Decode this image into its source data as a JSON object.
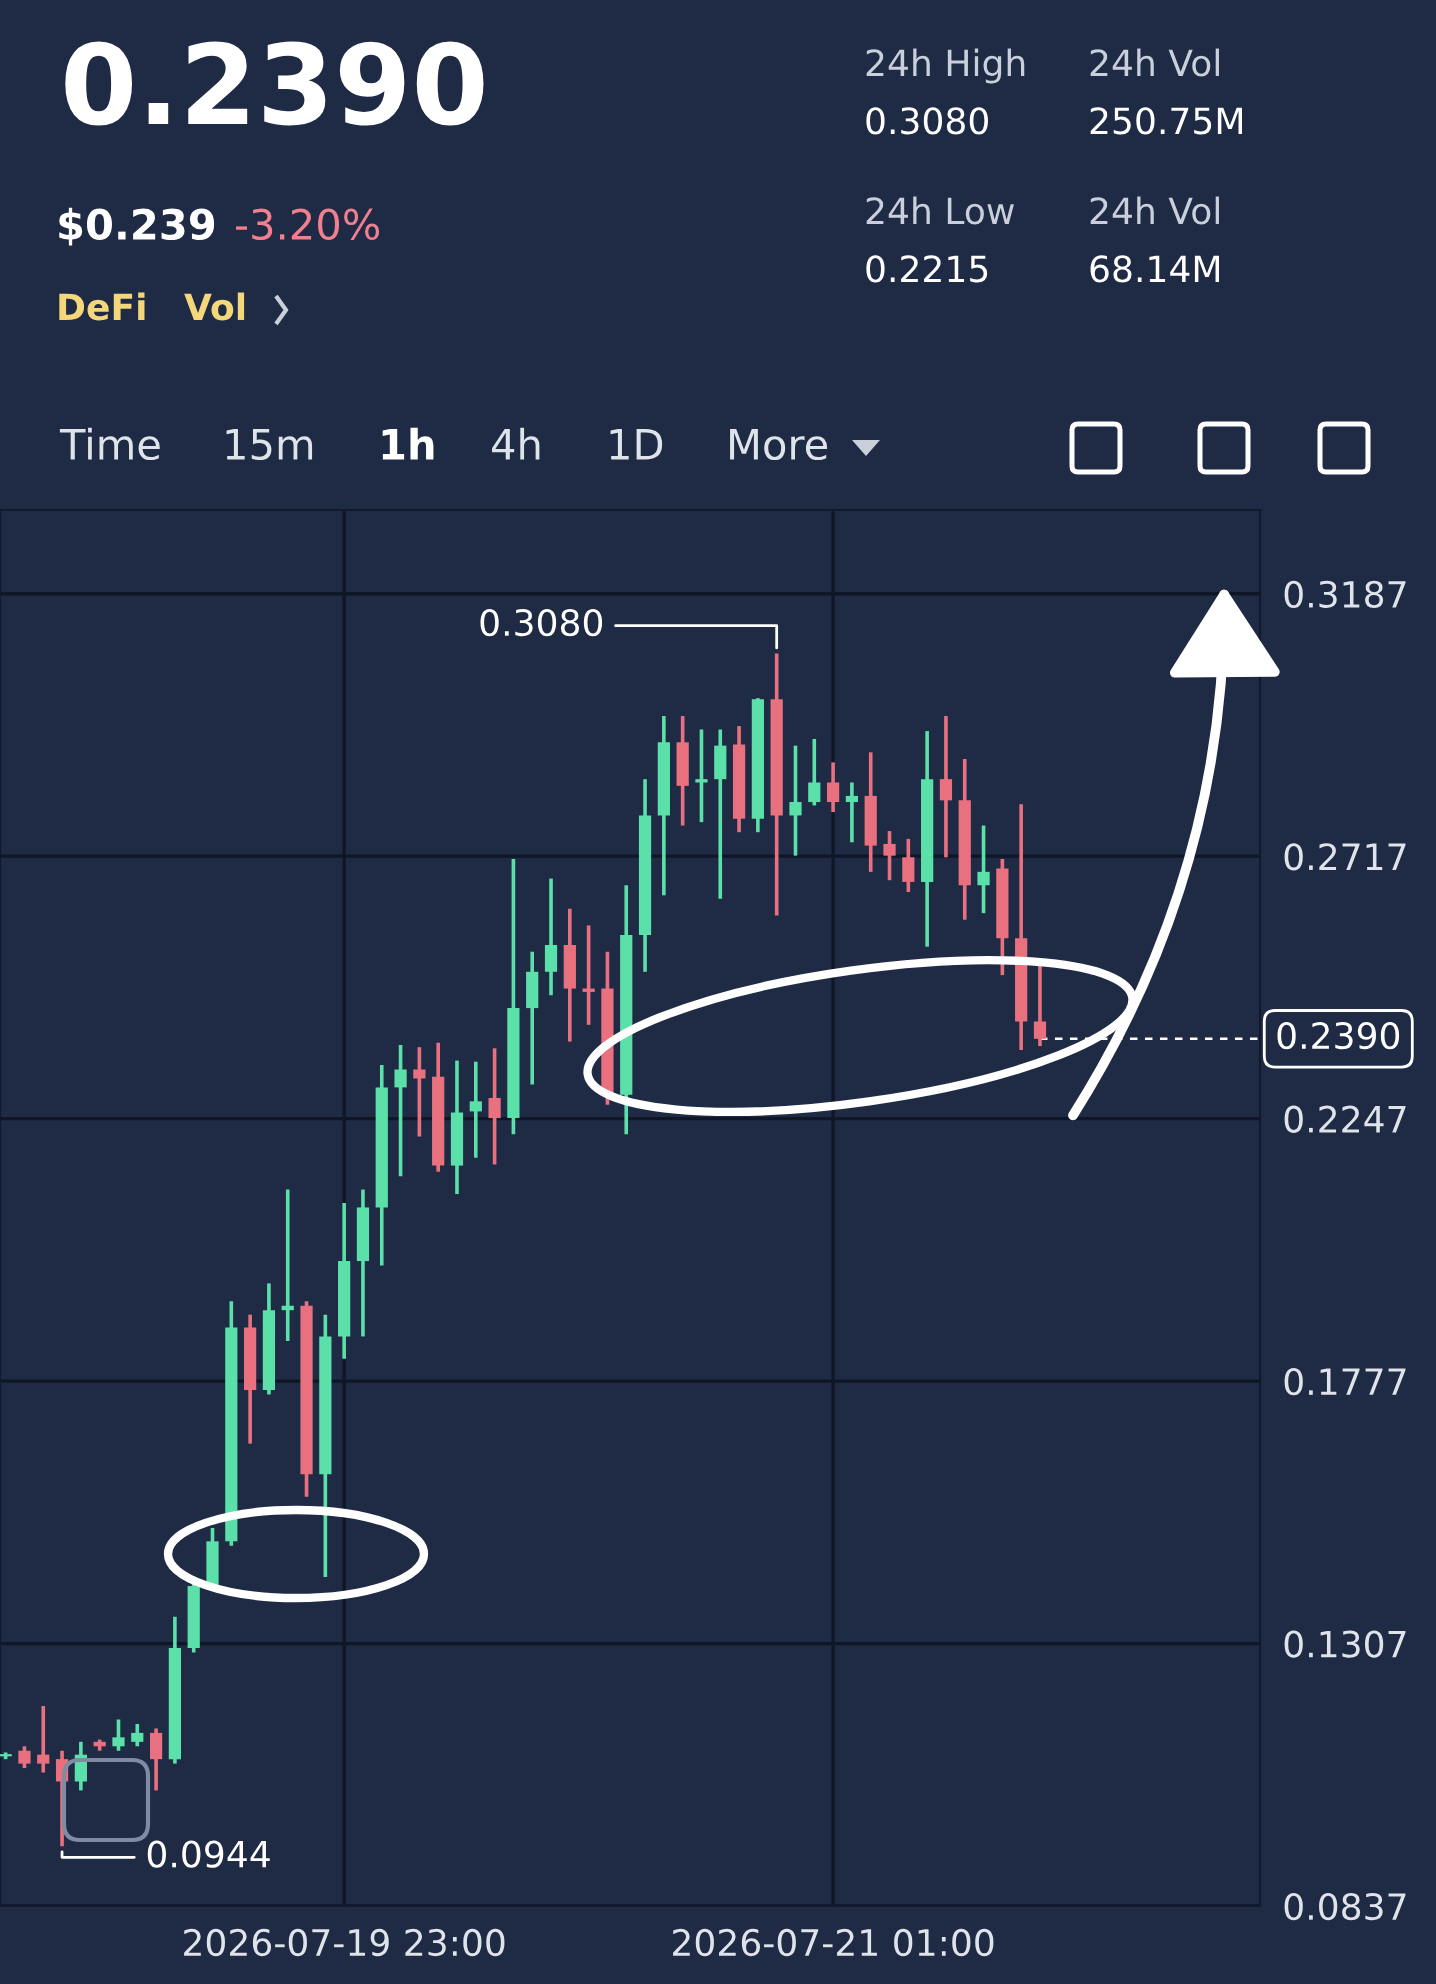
{
  "chart_data": {
    "type": "candlestick",
    "title": "0.2390",
    "x": [
      "2026-07-19T05:00",
      "2026-07-19T06:00",
      "2026-07-19T07:00",
      "2026-07-19T08:00",
      "2026-07-19T09:00",
      "2026-07-19T10:00",
      "2026-07-19T11:00",
      "2026-07-19T12:00",
      "2026-07-19T13:00",
      "2026-07-19T14:00",
      "2026-07-19T15:00",
      "2026-07-19T16:00",
      "2026-07-19T17:00",
      "2026-07-19T18:00",
      "2026-07-19T19:00",
      "2026-07-19T20:00",
      "2026-07-19T21:00",
      "2026-07-19T22:00",
      "2026-07-19T23:00",
      "2026-07-20T00:00",
      "2026-07-20T01:00",
      "2026-07-20T02:00",
      "2026-07-20T03:00",
      "2026-07-20T04:00",
      "2026-07-20T05:00",
      "2026-07-20T06:00",
      "2026-07-20T07:00",
      "2026-07-20T08:00",
      "2026-07-20T09:00",
      "2026-07-20T10:00",
      "2026-07-20T11:00",
      "2026-07-20T12:00",
      "2026-07-20T13:00",
      "2026-07-20T14:00",
      "2026-07-20T15:00",
      "2026-07-20T16:00",
      "2026-07-20T17:00",
      "2026-07-20T18:00",
      "2026-07-20T19:00",
      "2026-07-20T20:00",
      "2026-07-20T21:00",
      "2026-07-20T22:00",
      "2026-07-20T23:00",
      "2026-07-21T00:00",
      "2026-07-21T01:00",
      "2026-07-21T02:00",
      "2026-07-21T03:00",
      "2026-07-21T04:00",
      "2026-07-21T05:00",
      "2026-07-21T06:00",
      "2026-07-21T07:00",
      "2026-07-21T08:00",
      "2026-07-21T09:00",
      "2026-07-21T10:00",
      "2026-07-21T11:00",
      "2026-07-21T12:00"
    ],
    "ohlc": [
      [
        0.1105,
        0.1112,
        0.11,
        0.1108
      ],
      [
        0.1115,
        0.1123,
        0.1084,
        0.1092
      ],
      [
        0.1108,
        0.1195,
        0.1076,
        0.1092
      ],
      [
        0.11,
        0.1115,
        0.0944,
        0.106
      ],
      [
        0.106,
        0.1131,
        0.1044,
        0.1108
      ],
      [
        0.1131,
        0.1135,
        0.1115,
        0.1123
      ],
      [
        0.1123,
        0.1171,
        0.1115,
        0.1139
      ],
      [
        0.1131,
        0.1163,
        0.1123,
        0.1147
      ],
      [
        0.1147,
        0.1155,
        0.1044,
        0.11
      ],
      [
        0.11,
        0.1355,
        0.1092,
        0.1299
      ],
      [
        0.1299,
        0.1418,
        0.1291,
        0.141
      ],
      [
        0.141,
        0.1514,
        0.1402,
        0.149
      ],
      [
        0.149,
        0.192,
        0.1482,
        0.1873
      ],
      [
        0.1873,
        0.1896,
        0.1665,
        0.1761
      ],
      [
        0.1761,
        0.1952,
        0.1753,
        0.1904
      ],
      [
        0.1904,
        0.212,
        0.1849,
        0.1912
      ],
      [
        0.1912,
        0.192,
        0.157,
        0.161
      ],
      [
        0.161,
        0.1896,
        0.1426,
        0.1857
      ],
      [
        0.1857,
        0.2096,
        0.1817,
        0.1992
      ],
      [
        0.1992,
        0.212,
        0.1857,
        0.2088
      ],
      [
        0.2088,
        0.2343,
        0.1984,
        0.2303
      ],
      [
        0.2303,
        0.2379,
        0.2144,
        0.2335
      ],
      [
        0.2335,
        0.2375,
        0.2215,
        0.2319
      ],
      [
        0.2322,
        0.2383,
        0.2152,
        0.2163
      ],
      [
        0.2163,
        0.2351,
        0.2112,
        0.2258
      ],
      [
        0.226,
        0.2349,
        0.2177,
        0.2278
      ],
      [
        0.2284,
        0.2373,
        0.2165,
        0.2248
      ],
      [
        0.2248,
        0.2712,
        0.2219,
        0.2445
      ],
      [
        0.2445,
        0.2546,
        0.2308,
        0.251
      ],
      [
        0.251,
        0.2677,
        0.2468,
        0.2558
      ],
      [
        0.2558,
        0.2623,
        0.2385,
        0.248
      ],
      [
        0.248,
        0.2593,
        0.2415,
        0.2474
      ],
      [
        0.248,
        0.2546,
        0.2272,
        0.229
      ],
      [
        0.229,
        0.2665,
        0.2219,
        0.2576
      ],
      [
        0.2576,
        0.2855,
        0.251,
        0.279
      ],
      [
        0.279,
        0.2968,
        0.2647,
        0.2921
      ],
      [
        0.2921,
        0.2968,
        0.2772,
        0.2843
      ],
      [
        0.2849,
        0.2944,
        0.2778,
        0.2855
      ],
      [
        0.2855,
        0.2944,
        0.2641,
        0.2915
      ],
      [
        0.2917,
        0.295,
        0.276,
        0.2784
      ],
      [
        0.2784,
        0.3,
        0.276,
        0.2998
      ],
      [
        0.2998,
        0.308,
        0.2611,
        0.279
      ],
      [
        0.279,
        0.2915,
        0.2718,
        0.2814
      ],
      [
        0.2814,
        0.2927,
        0.2808,
        0.2849
      ],
      [
        0.2849,
        0.2885,
        0.2796,
        0.2814
      ],
      [
        0.2814,
        0.2849,
        0.2742,
        0.2825
      ],
      [
        0.2825,
        0.2903,
        0.2689,
        0.2736
      ],
      [
        0.2739,
        0.2762,
        0.2674,
        0.2718
      ],
      [
        0.2715,
        0.2748,
        0.2653,
        0.2671
      ],
      [
        0.2671,
        0.2941,
        0.2555,
        0.2855
      ],
      [
        0.2855,
        0.2968,
        0.2715,
        0.2817
      ],
      [
        0.2817,
        0.2891,
        0.2603,
        0.2665
      ],
      [
        0.2665,
        0.2772,
        0.2615,
        0.2689
      ],
      [
        0.2695,
        0.2712,
        0.2504,
        0.257
      ],
      [
        0.257,
        0.281,
        0.237,
        0.2421
      ],
      [
        0.2421,
        0.2524,
        0.2377,
        0.239
      ]
    ],
    "colors": [
      "#5ce0aa",
      "#e9717f",
      "#e9717f",
      "#e9717f",
      "#5ce0aa",
      "#e9717f",
      "#5ce0aa",
      "#5ce0aa",
      "#e9717f",
      "#5ce0aa",
      "#5ce0aa",
      "#5ce0aa",
      "#5ce0aa",
      "#e9717f",
      "#5ce0aa",
      "#5ce0aa",
      "#e9717f",
      "#5ce0aa",
      "#5ce0aa",
      "#5ce0aa",
      "#5ce0aa",
      "#5ce0aa",
      "#e9717f",
      "#e9717f",
      "#5ce0aa",
      "#5ce0aa",
      "#e9717f",
      "#5ce0aa",
      "#5ce0aa",
      "#5ce0aa",
      "#e9717f",
      "#e9717f",
      "#e9717f",
      "#5ce0aa",
      "#5ce0aa",
      "#5ce0aa",
      "#e9717f",
      "#5ce0aa",
      "#5ce0aa",
      "#e9717f",
      "#5ce0aa",
      "#e9717f",
      "#5ce0aa",
      "#5ce0aa",
      "#e9717f",
      "#5ce0aa",
      "#e9717f",
      "#e9717f",
      "#e9717f",
      "#5ce0aa",
      "#e9717f",
      "#e9717f",
      "#5ce0aa",
      "#e9717f",
      "#e9717f",
      "#e9717f"
    ],
    "xlim": [
      "2026-07-19T04:42",
      "2026-07-21T23:42"
    ],
    "xticks": [
      {
        "value": "2026-07-19T23:00",
        "label": "2026-07-19 23:00"
      },
      {
        "value": "2026-07-21T01:00",
        "label": "2026-07-21 01:00"
      }
    ],
    "ylim": [
      0.0837,
      0.3337
    ],
    "yticks": [
      0.0837,
      0.1307,
      0.1777,
      0.2247,
      0.2717,
      0.3187
    ],
    "grid": true,
    "ref_lines": [
      {
        "axis": "y",
        "value": 0.239,
        "label": "0.2390",
        "line_style": "dashed",
        "color": "#ffffff"
      }
    ],
    "annotations": [
      "$0.239",
      "-3.20%",
      "DeFi",
      "Vol",
      "24h High",
      "0.3080",
      "24h Low",
      "0.2215",
      "24h Vol",
      "250.75M",
      "24h Vol",
      "68.14M",
      "Time",
      "15m",
      "1h",
      "4h",
      "1D",
      "More",
      {
        "text": "0.3080",
        "x": "2026-07-20T22:00",
        "y": 0.308
      },
      {
        "text": "0.0944",
        "x": "2026-07-19T08:00",
        "y": 0.0944
      }
    ]
  }
}
